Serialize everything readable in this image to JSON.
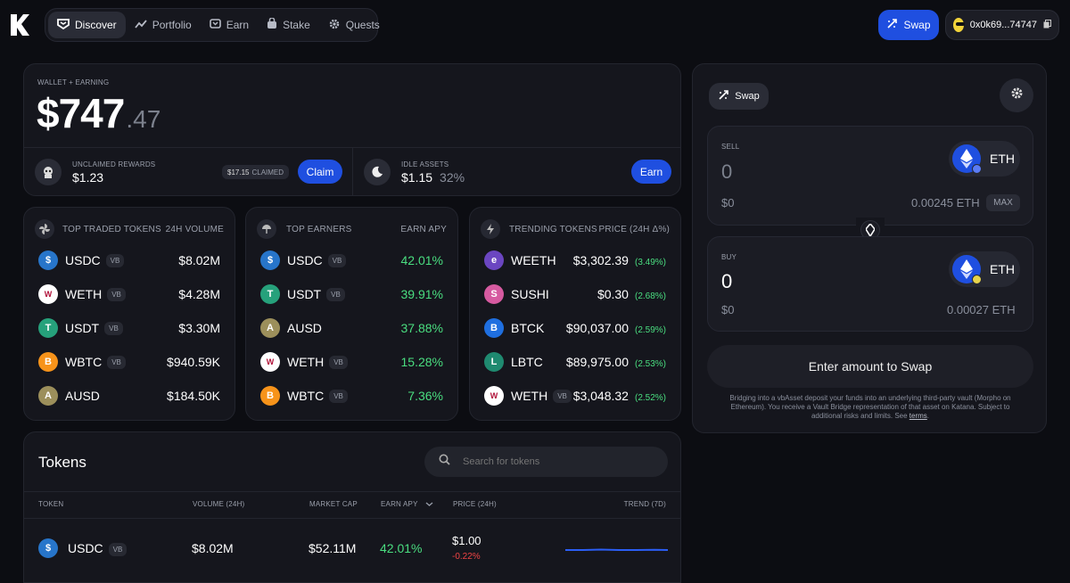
{
  "nav": {
    "items": [
      {
        "label": "Discover",
        "icon": "discover-icon"
      },
      {
        "label": "Portfolio",
        "icon": "chart-line-icon"
      },
      {
        "label": "Earn",
        "icon": "earn-icon"
      },
      {
        "label": "Stake",
        "icon": "stake-icon"
      },
      {
        "label": "Quests",
        "icon": "gear-icon"
      }
    ],
    "swap_label": "Swap",
    "wallet_address": "0x0k69...74747"
  },
  "wallet": {
    "label": "WALLET + EARNING",
    "value_main": "$747",
    "value_cents": ".47",
    "unclaimed_label": "UNCLAIMED REWARDS",
    "unclaimed_value": "$1.23",
    "claimed_amount": "$17.15",
    "claimed_label": "CLAIMED",
    "claim_button": "Claim",
    "idle_label": "IDLE ASSETS",
    "idle_value": "$1.15",
    "idle_pct": "32%",
    "earn_button": "Earn"
  },
  "top_traded": {
    "title": "TOP TRADED TOKENS",
    "col": "24H VOLUME",
    "rows": [
      {
        "token": "USDC",
        "vb": "VB",
        "value": "$8.02M",
        "color": "#2775ca",
        "glyph": "$"
      },
      {
        "token": "WETH",
        "vb": "VB",
        "value": "$4.28M",
        "color": "#ffffff",
        "glyph": "W"
      },
      {
        "token": "USDT",
        "vb": "VB",
        "value": "$3.30M",
        "color": "#26a17b",
        "glyph": "T"
      },
      {
        "token": "WBTC",
        "vb": "VB",
        "value": "$940.59K",
        "color": "#f7931a",
        "glyph": "B"
      },
      {
        "token": "AUSD",
        "vb": "",
        "value": "$184.50K",
        "color": "#9c8f5b",
        "glyph": "A"
      }
    ]
  },
  "top_earners": {
    "title": "TOP EARNERS",
    "col": "EARN APY",
    "rows": [
      {
        "token": "USDC",
        "vb": "VB",
        "value": "42.01%",
        "color": "#2775ca",
        "glyph": "$"
      },
      {
        "token": "USDT",
        "vb": "VB",
        "value": "39.91%",
        "color": "#26a17b",
        "glyph": "T"
      },
      {
        "token": "AUSD",
        "vb": "",
        "value": "37.88%",
        "color": "#9c8f5b",
        "glyph": "A"
      },
      {
        "token": "WETH",
        "vb": "VB",
        "value": "15.28%",
        "color": "#ffffff",
        "glyph": "W"
      },
      {
        "token": "WBTC",
        "vb": "VB",
        "value": "7.36%",
        "color": "#f7931a",
        "glyph": "B"
      }
    ]
  },
  "trending": {
    "title": "TRENDING TOKENS",
    "col": "PRICE (24H Δ%)",
    "rows": [
      {
        "token": "WEETH",
        "vb": "",
        "price": "$3,302.39",
        "change": "(3.49%)",
        "color": "#6b46c1",
        "glyph": "e"
      },
      {
        "token": "SUSHI",
        "vb": "",
        "price": "$0.30",
        "change": "(2.68%)",
        "color": "#d65aa0",
        "glyph": "S"
      },
      {
        "token": "BTCK",
        "vb": "",
        "price": "$90,037.00",
        "change": "(2.59%)",
        "color": "#1f6fe0",
        "glyph": "B"
      },
      {
        "token": "LBTC",
        "vb": "",
        "price": "$89,975.00",
        "change": "(2.53%)",
        "color": "#1f8a70",
        "glyph": "L"
      },
      {
        "token": "WETH",
        "vb": "VB",
        "price": "$3,048.32",
        "change": "(2.52%)",
        "color": "#ffffff",
        "glyph": "W"
      }
    ]
  },
  "tokens_table": {
    "title": "Tokens",
    "search_placeholder": "Search for tokens",
    "headers": [
      "TOKEN",
      "VOLUME (24H)",
      "MARKET CAP",
      "EARN APY",
      "PRICE (24H)",
      "TREND (7D)"
    ],
    "rows": [
      {
        "token": "USDC",
        "vb": "VB",
        "volume": "$8.02M",
        "mcap": "$52.11M",
        "apy": "42.01%",
        "price": "$1.00",
        "change": "-0.22%"
      }
    ]
  },
  "swap": {
    "tab_label": "Swap",
    "sell_label": "SELL",
    "sell_amount": "0",
    "sell_usd": "$0",
    "sell_token": "ETH",
    "sell_balance": "0.00245 ETH",
    "max_label": "MAX",
    "buy_label": "BUY",
    "buy_amount": "0",
    "buy_usd": "$0",
    "buy_token": "ETH",
    "buy_balance": "0.00027 ETH",
    "cta": "Enter amount to Swap",
    "disclaimer": "Bridging into a vbAsset deposit your funds into an underlying third-party vault (Morpho on Ethereum). You receive a Vault Bridge representation of that asset on Katana. Subject to additional risks and limits. See",
    "terms": "terms",
    "period": "."
  }
}
